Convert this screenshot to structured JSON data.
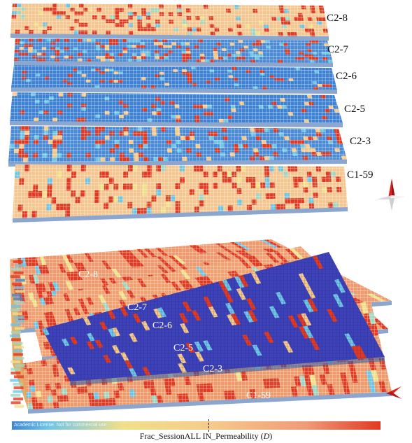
{
  "top_view": {
    "layers": [
      "C2-8",
      "C2-7",
      "C2-6",
      "C2-5",
      "C2-3",
      "C1-59"
    ]
  },
  "bottom_view": {
    "layers": [
      "C2-8",
      "C2-7",
      "C2-6",
      "C2-5",
      "C2-3",
      "C1-59"
    ]
  },
  "colorbar": {
    "license_note": "Academic License. Not for commercial use",
    "colors": [
      "#3f86d6",
      "#6ec5e6",
      "#f0e08a",
      "#f6c98a",
      "#ef9a78",
      "#e13a22"
    ]
  },
  "caption": {
    "prefix": "Frac_SessionALL IN_Permeability (",
    "unit": "D",
    "suffix": ")"
  },
  "icons": [
    "orientation-arrow-icon",
    "orientation-arrow-icon"
  ]
}
